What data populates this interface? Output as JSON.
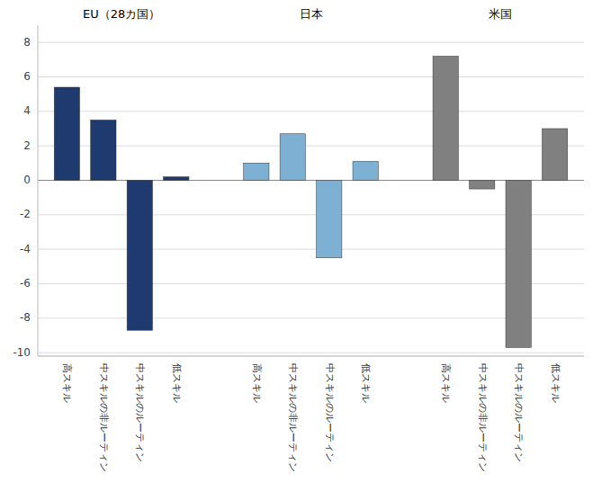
{
  "chart_data": {
    "type": "bar",
    "categories": [
      "高スキル",
      "中スキルの非ルーティン",
      "中スキルのルーティン",
      "低スキル"
    ],
    "series": [
      {
        "name": "EU（28カ国）",
        "color": "#1F3A6E",
        "values": [
          5.4,
          3.5,
          -8.7,
          0.2
        ]
      },
      {
        "name": "日本",
        "color": "#7EB0D4",
        "values": [
          1.0,
          2.7,
          -4.5,
          1.1
        ]
      },
      {
        "name": "米国",
        "color": "#808080",
        "values": [
          7.2,
          -0.5,
          -9.7,
          3.0
        ]
      }
    ],
    "ylim": [
      -10.2,
      9
    ],
    "yticks": [
      -10,
      -8,
      -6,
      -4,
      -2,
      0,
      2,
      4,
      6,
      8
    ],
    "grid": true
  }
}
